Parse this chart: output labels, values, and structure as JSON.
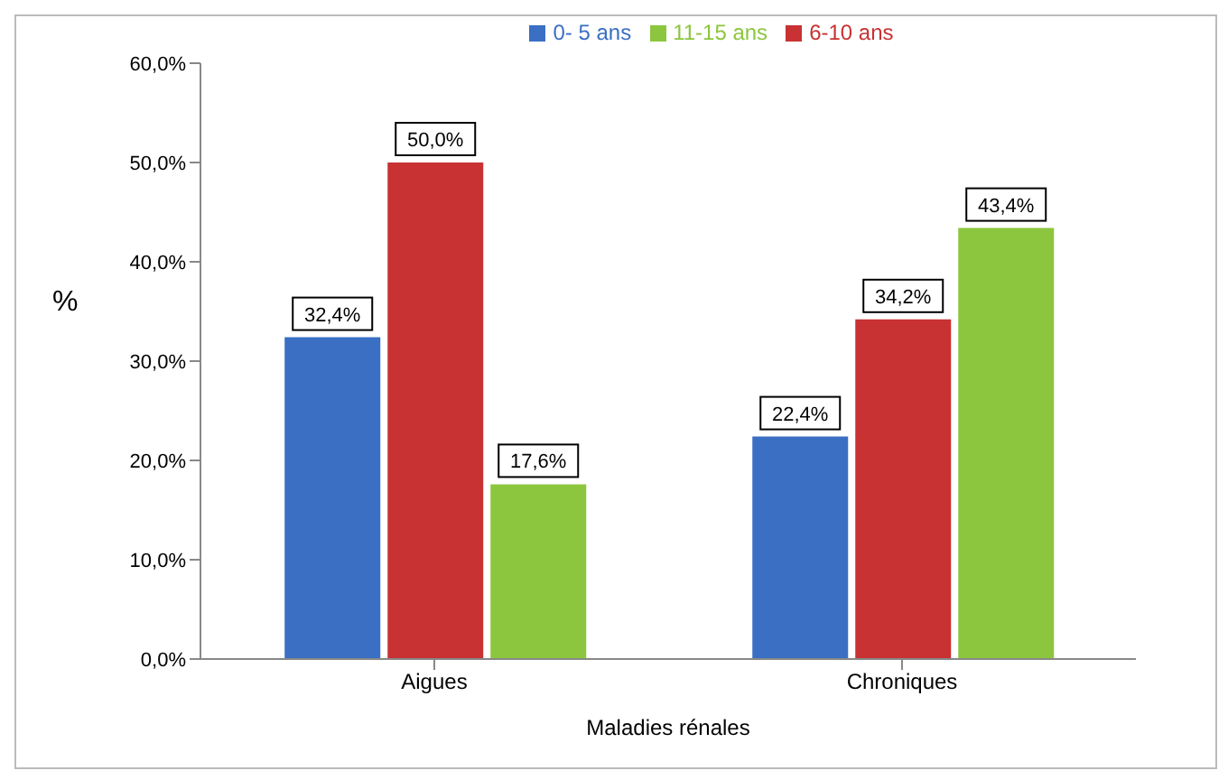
{
  "chart_data": {
    "type": "bar",
    "xlabel": "Maladies rénales",
    "ylabel": "%",
    "categories": [
      "Aigues",
      "Chroniques"
    ],
    "series": [
      {
        "name": "0- 5 ans",
        "color": "#3a6fc4",
        "values": [
          32.4,
          22.4
        ],
        "value_labels": [
          "32,4%",
          "22,4%"
        ]
      },
      {
        "name": "6-10 ans",
        "color": "#c83232",
        "values": [
          50.0,
          34.2
        ],
        "value_labels": [
          "50,0%",
          "34,2%"
        ]
      },
      {
        "name": "11-15 ans",
        "color": "#8cc63e",
        "values": [
          17.6,
          43.4
        ],
        "value_labels": [
          "17,6%",
          "43,4%"
        ]
      }
    ],
    "ylim": [
      0,
      60
    ],
    "yticks": [
      {
        "value": 0,
        "label": "0,0%"
      },
      {
        "value": 10,
        "label": "10,0%"
      },
      {
        "value": 20,
        "label": "20,0%"
      },
      {
        "value": 30,
        "label": "30,0%"
      },
      {
        "value": 40,
        "label": "40,0%"
      },
      {
        "value": 50,
        "label": "50,0%"
      },
      {
        "value": 60,
        "label": "60,0%"
      }
    ],
    "grid": false,
    "legend": "top"
  }
}
